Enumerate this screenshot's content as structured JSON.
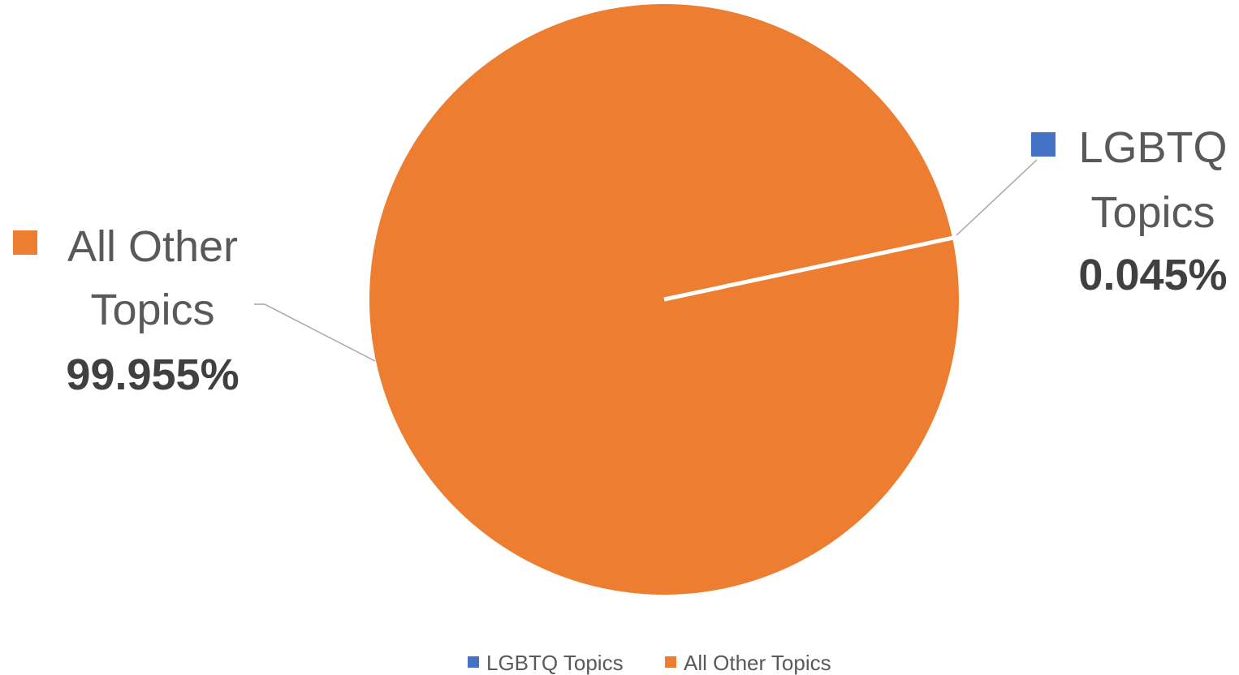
{
  "chart_data": {
    "type": "pie",
    "title": "",
    "slices": [
      {
        "label_line1": "LGBTQ",
        "label_line2": "Topics",
        "value": 0.045,
        "value_label": "0.045%",
        "color": "#4472c4"
      },
      {
        "label_line1": "All Other",
        "label_line2": "Topics",
        "value": 99.955,
        "value_label": "99.955%",
        "color": "#ed7d31"
      }
    ],
    "legend": {
      "position": "bottom",
      "entries": [
        "LGBTQ Topics",
        "All Other Topics"
      ]
    }
  }
}
